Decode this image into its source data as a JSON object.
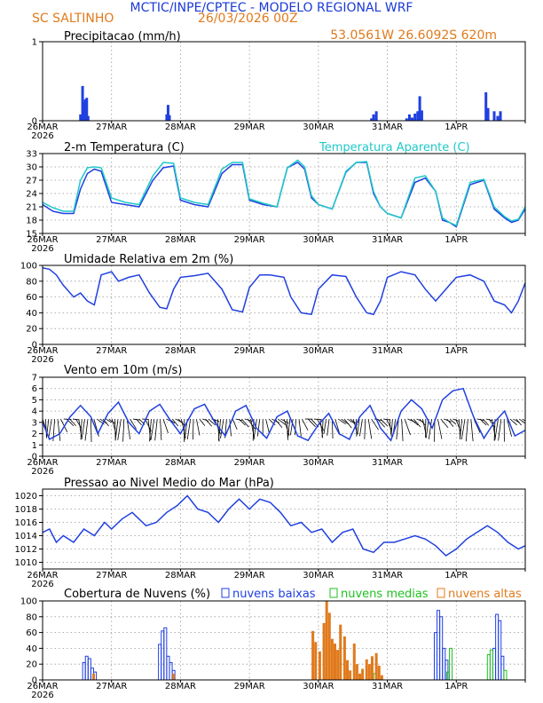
{
  "header": {
    "title": "MCTIC/INPE/CPTEC - MODELO REGIONAL WRF",
    "station": "SC SALTINHO",
    "run": "26/03/2026 00Z",
    "coords": "53.0561W 26.6092S 620m"
  },
  "colors": {
    "title": "#1a3ad6",
    "orange": "#e07a1c",
    "blue": "#2040e0",
    "cyan": "#20c8c8",
    "green": "#20c020"
  },
  "time_axis": {
    "start_label": "26MAR",
    "start_year": "2026",
    "day_labels": [
      "27MAR",
      "28MAR",
      "29MAR",
      "30MAR",
      "31MAR",
      "1APR"
    ]
  },
  "chart_data": [
    {
      "id": "precip",
      "type": "bar",
      "title": "Precipitacao (mm/h)",
      "ylim": [
        0,
        1
      ],
      "yticks": [
        0,
        1
      ],
      "series": [
        {
          "name": "Precipitacao",
          "color": "#2040e0",
          "points": [
            [
              0.55,
              0.08
            ],
            [
              0.58,
              0.44
            ],
            [
              0.6,
              0.24
            ],
            [
              0.62,
              0.27
            ],
            [
              0.64,
              0.29
            ],
            [
              0.66,
              0.06
            ],
            [
              1.8,
              0.08
            ],
            [
              1.82,
              0.2
            ],
            [
              1.84,
              0.07
            ],
            [
              4.77,
              0.03
            ],
            [
              4.8,
              0.08
            ],
            [
              4.84,
              0.12
            ],
            [
              5.28,
              0.03
            ],
            [
              5.32,
              0.08
            ],
            [
              5.36,
              0.04
            ],
            [
              5.4,
              0.09
            ],
            [
              5.44,
              0.12
            ],
            [
              5.47,
              0.31
            ],
            [
              5.5,
              0.13
            ],
            [
              6.43,
              0.36
            ],
            [
              6.46,
              0.16
            ],
            [
              6.55,
              0.12
            ],
            [
              6.6,
              0.06
            ],
            [
              6.64,
              0.12
            ]
          ]
        }
      ]
    },
    {
      "id": "temp",
      "type": "line",
      "title": "2-m Temperatura (C)",
      "legend": "Temperatura Aparente (C)",
      "ylim": [
        15,
        33
      ],
      "yticks": [
        15,
        18,
        21,
        24,
        27,
        30,
        33
      ],
      "series": [
        {
          "name": "Temperatura",
          "color": "#2040e0",
          "x": [
            0,
            0.15,
            0.3,
            0.45,
            0.55,
            0.65,
            0.75,
            0.85,
            1.0,
            1.2,
            1.4,
            1.6,
            1.75,
            1.9,
            2.0,
            2.2,
            2.4,
            2.6,
            2.75,
            2.9,
            3.0,
            3.2,
            3.4,
            3.55,
            3.7,
            3.8,
            3.9,
            4.0,
            4.2,
            4.4,
            4.55,
            4.7,
            4.8,
            4.9,
            5.0,
            5.2,
            5.4,
            5.55,
            5.7,
            5.8,
            5.9,
            6.0,
            6.2,
            6.4,
            6.55,
            6.7,
            6.8,
            6.9,
            7.0
          ],
          "y": [
            21.5,
            20.0,
            19.5,
            19.5,
            25,
            28.5,
            29.5,
            29.0,
            22.0,
            21.5,
            21.0,
            27,
            29.8,
            30.2,
            22.5,
            21.5,
            21.0,
            28.5,
            30.5,
            30.5,
            22.5,
            21.5,
            21.0,
            29.8,
            31.0,
            29.5,
            23.0,
            21.5,
            20.5,
            28.8,
            31.0,
            31.0,
            24.0,
            21.0,
            19.5,
            18.5,
            26.5,
            27.5,
            24.5,
            18.0,
            17.5,
            16.5,
            26.0,
            27.0,
            20.5,
            18.5,
            17.5,
            18.0,
            20.5
          ]
        },
        {
          "name": "Temperatura Aparente",
          "color": "#20c8c8",
          "x": [
            0,
            0.15,
            0.3,
            0.45,
            0.55,
            0.65,
            0.75,
            0.85,
            1.0,
            1.2,
            1.4,
            1.6,
            1.75,
            1.9,
            2.0,
            2.2,
            2.4,
            2.6,
            2.75,
            2.9,
            3.0,
            3.2,
            3.4,
            3.55,
            3.7,
            3.8,
            3.9,
            4.0,
            4.2,
            4.4,
            4.55,
            4.7,
            4.8,
            4.9,
            5.0,
            5.2,
            5.4,
            5.55,
            5.7,
            5.8,
            5.9,
            6.0,
            6.2,
            6.4,
            6.55,
            6.7,
            6.8,
            6.9,
            7.0
          ],
          "y": [
            22.0,
            20.8,
            20.0,
            20.0,
            27,
            29.8,
            30.0,
            29.8,
            23.0,
            22.0,
            21.5,
            28,
            31.0,
            30.8,
            23.0,
            22.0,
            21.5,
            29.5,
            31.0,
            31.0,
            22.8,
            21.8,
            21.0,
            29.8,
            31.5,
            30.0,
            23.5,
            21.5,
            20.5,
            29.0,
            31.0,
            31.2,
            24.5,
            21.0,
            19.5,
            18.5,
            27.5,
            28.0,
            24.5,
            18.5,
            17.5,
            16.8,
            26.5,
            27.2,
            21.0,
            18.8,
            17.8,
            18.2,
            21.0
          ]
        }
      ]
    },
    {
      "id": "rh",
      "type": "line",
      "title": "Umidade Relativa em 2m (%)",
      "ylim": [
        0,
        100
      ],
      "yticks": [
        0,
        20,
        40,
        60,
        80,
        100
      ],
      "series": [
        {
          "name": "Umidade Relativa",
          "color": "#2040e0",
          "x": [
            0,
            0.1,
            0.2,
            0.3,
            0.45,
            0.55,
            0.65,
            0.75,
            0.85,
            1.0,
            1.1,
            1.25,
            1.4,
            1.55,
            1.7,
            1.8,
            1.9,
            2.0,
            2.2,
            2.4,
            2.6,
            2.75,
            2.9,
            3.0,
            3.15,
            3.3,
            3.5,
            3.6,
            3.75,
            3.9,
            4.0,
            4.2,
            4.4,
            4.55,
            4.7,
            4.8,
            4.9,
            5.0,
            5.2,
            5.4,
            5.55,
            5.7,
            5.9,
            6.0,
            6.2,
            6.4,
            6.55,
            6.7,
            6.8,
            6.9,
            7.0
          ],
          "y": [
            97,
            95,
            88,
            75,
            60,
            65,
            55,
            50,
            88,
            92,
            80,
            85,
            88,
            65,
            47,
            45,
            70,
            85,
            87,
            90,
            70,
            44,
            41,
            72,
            88,
            88,
            85,
            60,
            40,
            38,
            70,
            88,
            86,
            60,
            40,
            38,
            55,
            85,
            92,
            88,
            70,
            55,
            75,
            85,
            88,
            80,
            55,
            50,
            40,
            55,
            78
          ]
        }
      ]
    },
    {
      "id": "wind",
      "type": "line",
      "title": "Vento em 10m (m/s)",
      "ylim": [
        0,
        7
      ],
      "yticks": [
        0,
        1,
        2,
        3,
        4,
        5,
        6,
        7
      ],
      "series": [
        {
          "name": "Vento",
          "color": "#2040e0",
          "x": [
            0,
            0.1,
            0.25,
            0.4,
            0.55,
            0.7,
            0.8,
            0.95,
            1.1,
            1.25,
            1.4,
            1.55,
            1.7,
            1.85,
            2.0,
            2.2,
            2.35,
            2.5,
            2.65,
            2.8,
            2.95,
            3.1,
            3.25,
            3.4,
            3.55,
            3.7,
            3.85,
            4.0,
            4.15,
            4.3,
            4.45,
            4.6,
            4.75,
            4.9,
            5.05,
            5.2,
            5.35,
            5.5,
            5.65,
            5.8,
            5.95,
            6.1,
            6.25,
            6.4,
            6.55,
            6.7,
            6.85,
            7.0
          ],
          "y": [
            3.0,
            1.5,
            2.0,
            3.5,
            4.5,
            3.5,
            2.0,
            3.8,
            4.8,
            3.0,
            2.0,
            4.0,
            4.6,
            3.2,
            2.0,
            4.2,
            4.6,
            3.0,
            1.8,
            4.0,
            4.5,
            2.5,
            1.6,
            3.5,
            4.0,
            1.8,
            1.4,
            2.8,
            3.8,
            2.0,
            1.5,
            3.5,
            4.5,
            2.5,
            1.4,
            4.0,
            5.0,
            4.2,
            2.5,
            5.0,
            5.8,
            6.0,
            3.5,
            1.6,
            3.0,
            4.0,
            1.8,
            2.3
          ]
        }
      ]
    },
    {
      "id": "pressure",
      "type": "line",
      "title": "Pressao ao Nivel Medio do Mar (hPa)",
      "ylim": [
        1009,
        1021
      ],
      "yticks": [
        1010,
        1012,
        1014,
        1016,
        1018,
        1020
      ],
      "series": [
        {
          "name": "Pressao",
          "color": "#2040e0",
          "x": [
            0,
            0.1,
            0.2,
            0.3,
            0.45,
            0.6,
            0.75,
            0.9,
            1.0,
            1.15,
            1.3,
            1.5,
            1.65,
            1.8,
            1.95,
            2.1,
            2.25,
            2.4,
            2.55,
            2.7,
            2.85,
            3.0,
            3.15,
            3.3,
            3.45,
            3.6,
            3.75,
            3.9,
            4.05,
            4.2,
            4.35,
            4.5,
            4.65,
            4.8,
            4.95,
            5.1,
            5.25,
            5.4,
            5.55,
            5.7,
            5.85,
            6.0,
            6.15,
            6.3,
            6.45,
            6.6,
            6.75,
            6.9,
            7.0
          ],
          "y": [
            1014.5,
            1015.0,
            1013.0,
            1014.0,
            1013.0,
            1015.0,
            1014.0,
            1016.0,
            1015.0,
            1016.5,
            1017.5,
            1015.5,
            1016.0,
            1017.5,
            1018.5,
            1020.0,
            1018.0,
            1017.5,
            1016.0,
            1018.0,
            1019.5,
            1018.0,
            1019.5,
            1019.0,
            1017.5,
            1015.5,
            1016.0,
            1014.5,
            1015.0,
            1013.0,
            1014.5,
            1015.0,
            1012.0,
            1011.5,
            1013.0,
            1013.0,
            1013.5,
            1014.0,
            1013.5,
            1012.5,
            1011.0,
            1012.0,
            1013.5,
            1014.5,
            1015.5,
            1014.5,
            1013.0,
            1012.0,
            1012.5
          ]
        }
      ]
    },
    {
      "id": "clouds",
      "type": "bar",
      "title": "Cobertura de Nuvens (%)",
      "ylim": [
        0,
        100
      ],
      "yticks": [
        0,
        20,
        40,
        60,
        80,
        100
      ],
      "legend": [
        "nuvens baixas",
        "nuvens medias",
        "nuvens altas"
      ],
      "series": [
        {
          "name": "nuvens baixas",
          "color": "#2040e0",
          "style": "outline",
          "points": [
            [
              0.6,
              22
            ],
            [
              0.64,
              30
            ],
            [
              0.68,
              27
            ],
            [
              0.72,
              15
            ],
            [
              0.76,
              10
            ],
            [
              1.7,
              45
            ],
            [
              1.74,
              62
            ],
            [
              1.78,
              66
            ],
            [
              1.82,
              30
            ],
            [
              1.86,
              22
            ],
            [
              1.9,
              12
            ],
            [
              5.7,
              60
            ],
            [
              5.74,
              88
            ],
            [
              5.78,
              80
            ],
            [
              5.82,
              40
            ],
            [
              5.86,
              25
            ],
            [
              6.55,
              40
            ],
            [
              6.59,
              83
            ],
            [
              6.63,
              75
            ],
            [
              6.67,
              30
            ]
          ]
        },
        {
          "name": "nuvens medias",
          "color": "#20c020",
          "style": "outline",
          "points": [
            [
              5.92,
              40
            ],
            [
              5.88,
              10
            ],
            [
              6.47,
              32
            ],
            [
              6.51,
              38
            ],
            [
              6.71,
              12
            ],
            [
              4.75,
              10
            ],
            [
              4.82,
              8
            ]
          ]
        },
        {
          "name": "nuvens altas",
          "color": "#e07a1c",
          "style": "solid",
          "points": [
            [
              0.74,
              8
            ],
            [
              1.9,
              8
            ],
            [
              3.92,
              62
            ],
            [
              3.96,
              48
            ],
            [
              4.02,
              36
            ],
            [
              4.08,
              72
            ],
            [
              4.12,
              100
            ],
            [
              4.16,
              85
            ],
            [
              4.2,
              52
            ],
            [
              4.24,
              46
            ],
            [
              4.28,
              38
            ],
            [
              4.32,
              70
            ],
            [
              4.38,
              55
            ],
            [
              4.42,
              25
            ],
            [
              4.46,
              12
            ],
            [
              4.52,
              46
            ],
            [
              4.56,
              20
            ],
            [
              4.6,
              8
            ],
            [
              4.64,
              14
            ],
            [
              4.7,
              26
            ],
            [
              4.74,
              20
            ],
            [
              4.78,
              30
            ],
            [
              4.84,
              34
            ],
            [
              4.88,
              18
            ],
            [
              4.92,
              6
            ]
          ]
        }
      ]
    }
  ]
}
